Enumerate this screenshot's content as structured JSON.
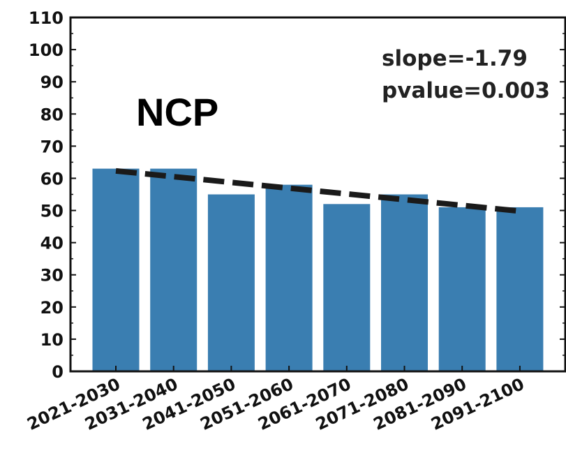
{
  "chart_data": {
    "type": "bar",
    "categories": [
      "2021-2030",
      "2031-2040",
      "2041-2050",
      "2051-2060",
      "2061-2070",
      "2071-2080",
      "2081-2090",
      "2091-2100"
    ],
    "values": [
      63,
      63,
      55,
      58,
      52,
      55,
      51,
      51
    ],
    "ylim": [
      0,
      110
    ],
    "yticks": [
      "0",
      "10",
      "20",
      "30",
      "40",
      "50",
      "60",
      "70",
      "80",
      "90",
      "100",
      "110"
    ],
    "trend_line": {
      "start": 62.3,
      "end": 49.8,
      "style": "dashed"
    },
    "annotations": {
      "region": "NCP",
      "slope": "slope=-1.79",
      "pvalue": "pvalue=0.003"
    },
    "colors": {
      "bar": "#3a7eb1",
      "trend": "#1a1a1a"
    },
    "grid": false,
    "legend": "none"
  }
}
